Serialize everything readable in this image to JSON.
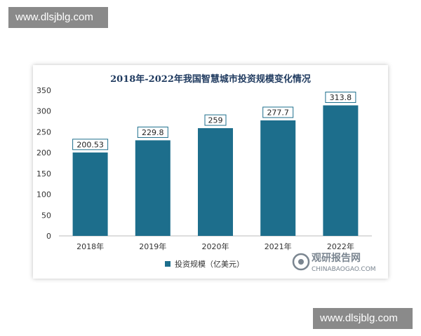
{
  "watermark": {
    "top_text": "www.dlsjblg.com",
    "bottom_text": "www.dlsjblg.com"
  },
  "brand": {
    "name": "观研报告网",
    "url_text": "CHINABAOGAO.COM",
    "color": "#7a8590"
  },
  "chart_data": {
    "type": "bar",
    "title": "2018年-2022年我国智慧城市投资规模变化情况",
    "categories": [
      "2018年",
      "2019年",
      "2020年",
      "2021年",
      "2022年"
    ],
    "series": [
      {
        "name": "投资规模（亿美元）",
        "values": [
          200.53,
          229.8,
          259,
          277.7,
          313.8
        ]
      }
    ],
    "data_labels": [
      "200.53",
      "229.8",
      "259",
      "277.7",
      "313.8"
    ],
    "y_ticks": [
      "0",
      "50",
      "100",
      "150",
      "200",
      "250",
      "300",
      "350"
    ],
    "ylim": [
      0,
      350
    ],
    "grid": false,
    "legend_position": "bottom",
    "colors": {
      "bar": "#1d6e8c",
      "title": "#1f3a5f",
      "label_border": "#1d6e8c",
      "axis": "#bbbbbb"
    }
  }
}
